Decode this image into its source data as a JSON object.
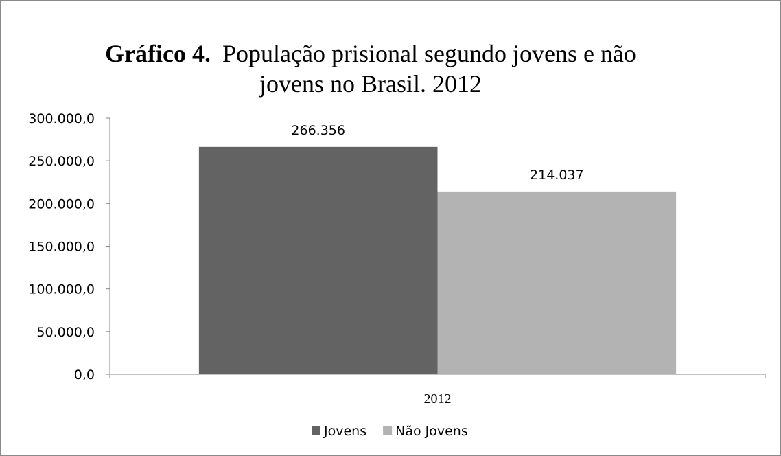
{
  "chart_data": {
    "type": "bar",
    "title_bold": "Gráfico 4.",
    "title_line1": "População prisional segundo jovens e não",
    "title_line2": "jovens no Brasil. 2012",
    "categories": [
      "2012"
    ],
    "series": [
      {
        "name": "Jovens",
        "values": [
          266356
        ],
        "value_labels": [
          "266.356"
        ],
        "color": "#636363"
      },
      {
        "name": "Não Jovens",
        "values": [
          214037
        ],
        "value_labels": [
          "214.037"
        ],
        "color": "#b3b3b3"
      }
    ],
    "ylim": [
      0,
      300000
    ],
    "yticks": [
      0,
      50000,
      100000,
      150000,
      200000,
      250000,
      300000
    ],
    "ytick_labels": [
      "0,0",
      "50.000,0",
      "100.000,0",
      "150.000,0",
      "200.000,0",
      "250.000,0",
      "300.000,0"
    ],
    "grid": false,
    "legend": "bottom",
    "axis_color": "#868686"
  }
}
